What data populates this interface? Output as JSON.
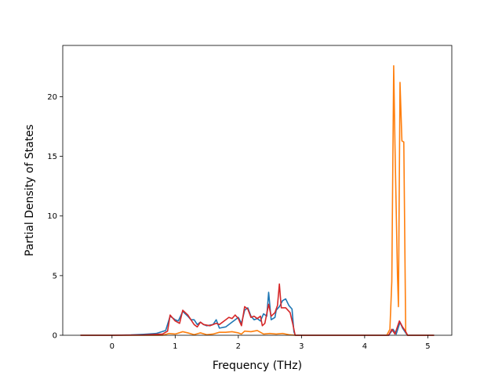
{
  "chart_data": {
    "type": "line",
    "title": "",
    "xlabel": "Frequency (THz)",
    "ylabel": "Partial Density of States",
    "xlim": [
      -0.78,
      5.38
    ],
    "ylim": [
      0,
      24.3
    ],
    "xticks": [
      0,
      1,
      2,
      3,
      4,
      5
    ],
    "yticks": [
      0,
      5,
      10,
      15,
      20
    ],
    "grid": false,
    "legend": "none",
    "series": [
      {
        "color": "#1f77b4",
        "points": [
          [
            -0.5,
            0
          ],
          [
            0.0,
            0
          ],
          [
            0.3,
            0.03
          ],
          [
            0.5,
            0.08
          ],
          [
            0.7,
            0.15
          ],
          [
            0.85,
            0.4
          ],
          [
            0.92,
            1.6
          ],
          [
            1.0,
            1.3
          ],
          [
            1.05,
            1.2
          ],
          [
            1.12,
            2.0
          ],
          [
            1.2,
            1.6
          ],
          [
            1.25,
            1.3
          ],
          [
            1.3,
            1.3
          ],
          [
            1.35,
            0.9
          ],
          [
            1.4,
            1.1
          ],
          [
            1.45,
            0.9
          ],
          [
            1.5,
            0.8
          ],
          [
            1.6,
            0.9
          ],
          [
            1.65,
            1.3
          ],
          [
            1.7,
            0.6
          ],
          [
            1.8,
            0.7
          ],
          [
            1.9,
            1.1
          ],
          [
            1.95,
            1.3
          ],
          [
            2.0,
            1.5
          ],
          [
            2.05,
            1.0
          ],
          [
            2.1,
            2.1
          ],
          [
            2.15,
            2.3
          ],
          [
            2.2,
            1.6
          ],
          [
            2.25,
            1.3
          ],
          [
            2.3,
            1.4
          ],
          [
            2.35,
            1.2
          ],
          [
            2.4,
            1.8
          ],
          [
            2.45,
            1.6
          ],
          [
            2.48,
            3.6
          ],
          [
            2.52,
            1.3
          ],
          [
            2.58,
            1.5
          ],
          [
            2.6,
            2.1
          ],
          [
            2.65,
            2.4
          ],
          [
            2.7,
            2.9
          ],
          [
            2.75,
            3.05
          ],
          [
            2.8,
            2.5
          ],
          [
            2.85,
            2.2
          ],
          [
            2.88,
            0.3
          ],
          [
            2.9,
            0
          ],
          [
            4.38,
            0
          ],
          [
            4.45,
            0.5
          ],
          [
            4.5,
            0.1
          ],
          [
            4.56,
            1.1
          ],
          [
            4.6,
            0.6
          ],
          [
            4.65,
            0.2
          ],
          [
            4.68,
            0
          ],
          [
            5.1,
            0
          ]
        ]
      },
      {
        "color": "#ff7f0e",
        "points": [
          [
            -0.5,
            0
          ],
          [
            0.8,
            0
          ],
          [
            0.9,
            0.15
          ],
          [
            1.0,
            0.1
          ],
          [
            1.12,
            0.3
          ],
          [
            1.2,
            0.2
          ],
          [
            1.3,
            0.05
          ],
          [
            1.4,
            0.2
          ],
          [
            1.5,
            0.05
          ],
          [
            1.6,
            0.1
          ],
          [
            1.7,
            0.25
          ],
          [
            1.8,
            0.25
          ],
          [
            1.9,
            0.3
          ],
          [
            2.0,
            0.2
          ],
          [
            2.05,
            0.1
          ],
          [
            2.1,
            0.35
          ],
          [
            2.2,
            0.3
          ],
          [
            2.3,
            0.4
          ],
          [
            2.4,
            0.1
          ],
          [
            2.5,
            0.15
          ],
          [
            2.6,
            0.1
          ],
          [
            2.7,
            0.15
          ],
          [
            2.8,
            0.05
          ],
          [
            2.9,
            0
          ],
          [
            4.35,
            0
          ],
          [
            4.4,
            0.5
          ],
          [
            4.43,
            4.5
          ],
          [
            4.46,
            22.6
          ],
          [
            4.48,
            16.0
          ],
          [
            4.52,
            5.0
          ],
          [
            4.535,
            2.4
          ],
          [
            4.56,
            21.2
          ],
          [
            4.59,
            16.3
          ],
          [
            4.62,
            16.2
          ],
          [
            4.65,
            0.3
          ],
          [
            4.68,
            0
          ],
          [
            5.1,
            0
          ]
        ]
      },
      {
        "color": "#d62728",
        "points": [
          [
            -0.5,
            0
          ],
          [
            0.0,
            0
          ],
          [
            0.5,
            0.03
          ],
          [
            0.8,
            0.1
          ],
          [
            0.88,
            0.35
          ],
          [
            0.92,
            1.7
          ],
          [
            1.0,
            1.2
          ],
          [
            1.07,
            1.0
          ],
          [
            1.12,
            2.1
          ],
          [
            1.2,
            1.7
          ],
          [
            1.3,
            0.9
          ],
          [
            1.35,
            0.7
          ],
          [
            1.4,
            1.1
          ],
          [
            1.45,
            0.9
          ],
          [
            1.55,
            0.8
          ],
          [
            1.65,
            1.0
          ],
          [
            1.7,
            0.9
          ],
          [
            1.8,
            1.3
          ],
          [
            1.85,
            1.5
          ],
          [
            1.9,
            1.4
          ],
          [
            1.95,
            1.7
          ],
          [
            2.0,
            1.4
          ],
          [
            2.05,
            0.8
          ],
          [
            2.1,
            2.4
          ],
          [
            2.15,
            2.2
          ],
          [
            2.2,
            1.5
          ],
          [
            2.25,
            1.6
          ],
          [
            2.3,
            1.4
          ],
          [
            2.35,
            1.6
          ],
          [
            2.38,
            0.8
          ],
          [
            2.42,
            1.0
          ],
          [
            2.48,
            2.6
          ],
          [
            2.52,
            1.6
          ],
          [
            2.58,
            1.9
          ],
          [
            2.62,
            2.5
          ],
          [
            2.65,
            4.3
          ],
          [
            2.68,
            2.3
          ],
          [
            2.75,
            2.3
          ],
          [
            2.82,
            1.9
          ],
          [
            2.86,
            1.0
          ],
          [
            2.9,
            0
          ],
          [
            4.38,
            0
          ],
          [
            4.43,
            0.5
          ],
          [
            4.48,
            0.1
          ],
          [
            4.55,
            1.2
          ],
          [
            4.6,
            0.7
          ],
          [
            4.65,
            0.3
          ],
          [
            4.68,
            0
          ],
          [
            5.1,
            0
          ]
        ]
      }
    ]
  }
}
